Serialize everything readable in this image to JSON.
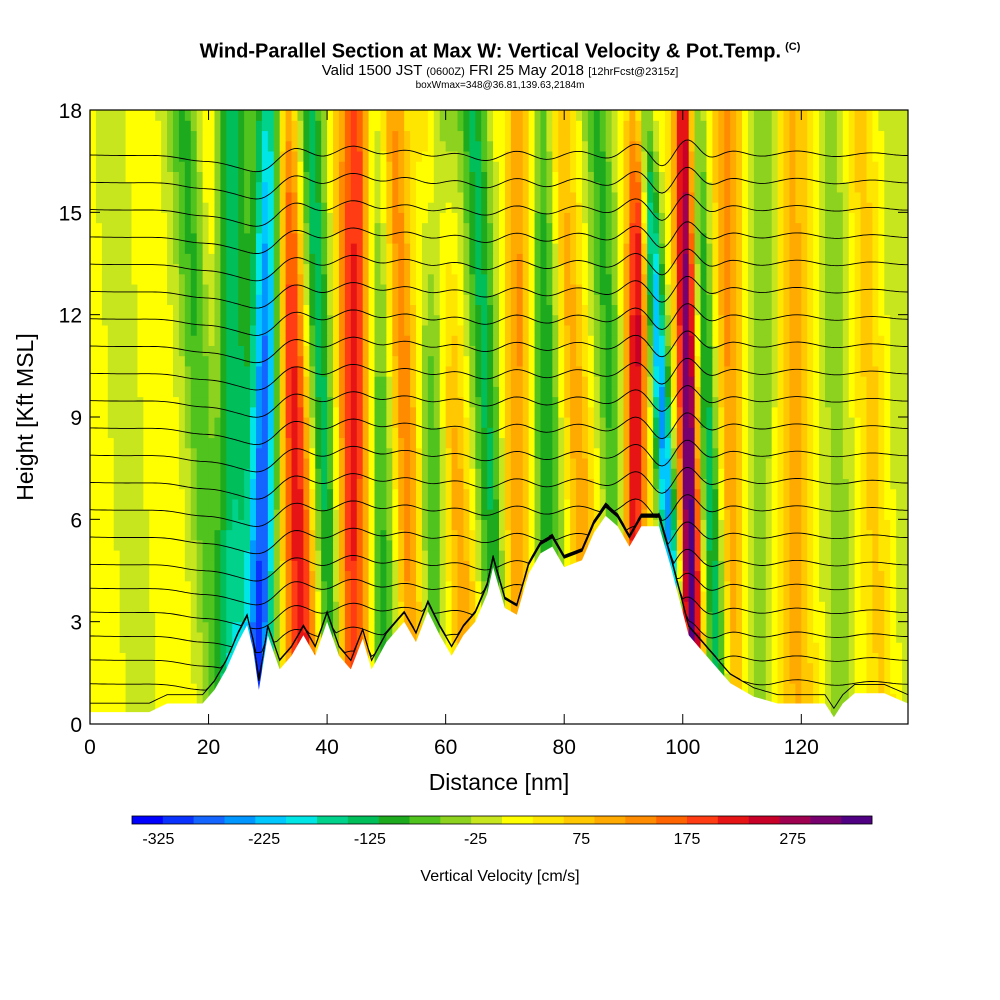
{
  "title": {
    "main": "Wind-Parallel Section at Max W: Vertical Velocity & Pot.Temp.",
    "copyright": "(C)",
    "valid_prefix": "Valid 1500 JST",
    "valid_utc": "(0600Z)",
    "valid_date": "FRI 25 May 2018",
    "forecast": "[12hrFcst@2315z]",
    "box_info": "boxWmax=348@36.81,139.63,2184m"
  },
  "chart_data": {
    "type": "heatmap",
    "xlabel": "Distance [nm]",
    "ylabel": "Height [Kft MSL]",
    "xlim": [
      0,
      138
    ],
    "ylim": [
      0,
      18
    ],
    "x_ticks": [
      "0",
      "20",
      "40",
      "60",
      "80",
      "100",
      "120"
    ],
    "x_tick_values": [
      0,
      20,
      40,
      60,
      80,
      100,
      120
    ],
    "y_ticks": [
      "0",
      "3",
      "6",
      "9",
      "12",
      "15",
      "18"
    ],
    "y_tick_values": [
      0,
      3,
      6,
      9,
      12,
      15,
      18
    ],
    "colorbar": {
      "label": "Vertical Velocity [cm/s]",
      "tick_labels": [
        "-325",
        "-225",
        "-125",
        "-25",
        "75",
        "175",
        "275"
      ],
      "min": -350,
      "max": 350,
      "colors": [
        "#0000ff",
        "#0a32ff",
        "#1464ff",
        "#0096ff",
        "#00c8ff",
        "#00e6e6",
        "#00d28c",
        "#00be5a",
        "#1eaa1e",
        "#50c31e",
        "#8cd21e",
        "#c8e61e",
        "#ffff00",
        "#ffe600",
        "#ffc800",
        "#ffaa00",
        "#ff8c00",
        "#ff6400",
        "#ff3c14",
        "#e61414",
        "#c80028",
        "#a00050",
        "#78006e",
        "#500082"
      ]
    },
    "w_bands": [
      {
        "x": 6,
        "w": -20,
        "width": 5
      },
      {
        "x": 19,
        "w": -110,
        "width": 3
      },
      {
        "x": 21,
        "w": 60,
        "width": 2
      },
      {
        "x": 24,
        "w": -150,
        "width": 3
      },
      {
        "x": 29.5,
        "w": -300,
        "width": 2.5
      },
      {
        "x": 34.5,
        "w": 210,
        "width": 3
      },
      {
        "x": 39,
        "w": -170,
        "width": 2.5
      },
      {
        "x": 44.5,
        "w": 200,
        "width": 3
      },
      {
        "x": 49,
        "w": -120,
        "width": 2.5
      },
      {
        "x": 53,
        "w": 130,
        "width": 2.5
      },
      {
        "x": 58,
        "w": -110,
        "width": 2.5
      },
      {
        "x": 61,
        "w": 90,
        "width": 2.5
      },
      {
        "x": 67,
        "w": -140,
        "width": 2.5
      },
      {
        "x": 72,
        "w": 110,
        "width": 2.5
      },
      {
        "x": 77,
        "w": -130,
        "width": 2.5
      },
      {
        "x": 82,
        "w": 90,
        "width": 2.5
      },
      {
        "x": 88,
        "w": -110,
        "width": 2.5
      },
      {
        "x": 92,
        "w": 230,
        "width": 2
      },
      {
        "x": 96.5,
        "w": -260,
        "width": 1.6
      },
      {
        "x": 101,
        "w": 330,
        "width": 1.8
      },
      {
        "x": 104,
        "w": -170,
        "width": 2
      },
      {
        "x": 108,
        "w": 110,
        "width": 2.5
      },
      {
        "x": 113,
        "w": -70,
        "width": 3
      },
      {
        "x": 119,
        "w": 80,
        "width": 3
      },
      {
        "x": 126,
        "w": -60,
        "width": 3
      },
      {
        "x": 132,
        "w": 60,
        "width": 3
      },
      {
        "x": 136,
        "w": -40,
        "width": 3
      }
    ],
    "terrain_kft": [
      [
        0,
        0.35
      ],
      [
        10,
        0.35
      ],
      [
        13,
        0.6
      ],
      [
        19,
        0.6
      ],
      [
        21,
        1.0
      ],
      [
        23,
        1.6
      ],
      [
        25,
        2.4
      ],
      [
        26.5,
        2.9
      ],
      [
        27.5,
        2.2
      ],
      [
        28.5,
        1.0
      ],
      [
        30,
        2.6
      ],
      [
        32,
        1.6
      ],
      [
        34,
        2.0
      ],
      [
        36,
        2.6
      ],
      [
        38,
        2.0
      ],
      [
        40,
        3.0
      ],
      [
        42,
        2.0
      ],
      [
        44,
        1.6
      ],
      [
        46,
        2.5
      ],
      [
        47.5,
        1.6
      ],
      [
        50,
        2.4
      ],
      [
        53,
        3.0
      ],
      [
        55,
        2.4
      ],
      [
        57,
        3.3
      ],
      [
        59,
        2.6
      ],
      [
        61,
        2.0
      ],
      [
        63,
        2.6
      ],
      [
        65,
        3.0
      ],
      [
        67,
        3.8
      ],
      [
        68,
        4.6
      ],
      [
        70,
        3.4
      ],
      [
        72,
        3.2
      ],
      [
        74,
        4.4
      ],
      [
        76,
        5.0
      ],
      [
        78,
        5.2
      ],
      [
        80,
        4.6
      ],
      [
        83,
        4.8
      ],
      [
        85,
        5.6
      ],
      [
        87,
        6.1
      ],
      [
        89,
        5.8
      ],
      [
        91,
        5.2
      ],
      [
        93,
        5.8
      ],
      [
        96,
        5.8
      ],
      [
        98,
        4.6
      ],
      [
        99.5,
        3.6
      ],
      [
        101,
        2.6
      ],
      [
        103,
        2.2
      ],
      [
        105,
        1.8
      ],
      [
        108,
        1.2
      ],
      [
        112,
        0.8
      ],
      [
        116,
        0.6
      ],
      [
        118,
        0.6
      ],
      [
        121,
        0.6
      ],
      [
        124,
        0.6
      ],
      [
        125.5,
        0.2
      ],
      [
        127,
        0.6
      ],
      [
        129,
        0.9
      ],
      [
        134,
        0.9
      ],
      [
        138,
        0.6
      ]
    ],
    "theta_levels_K": [
      296,
      298,
      300,
      302,
      304,
      306,
      308,
      310,
      312,
      314,
      316,
      318,
      320,
      322,
      324,
      326,
      328,
      330,
      332,
      334,
      336,
      338
    ]
  }
}
